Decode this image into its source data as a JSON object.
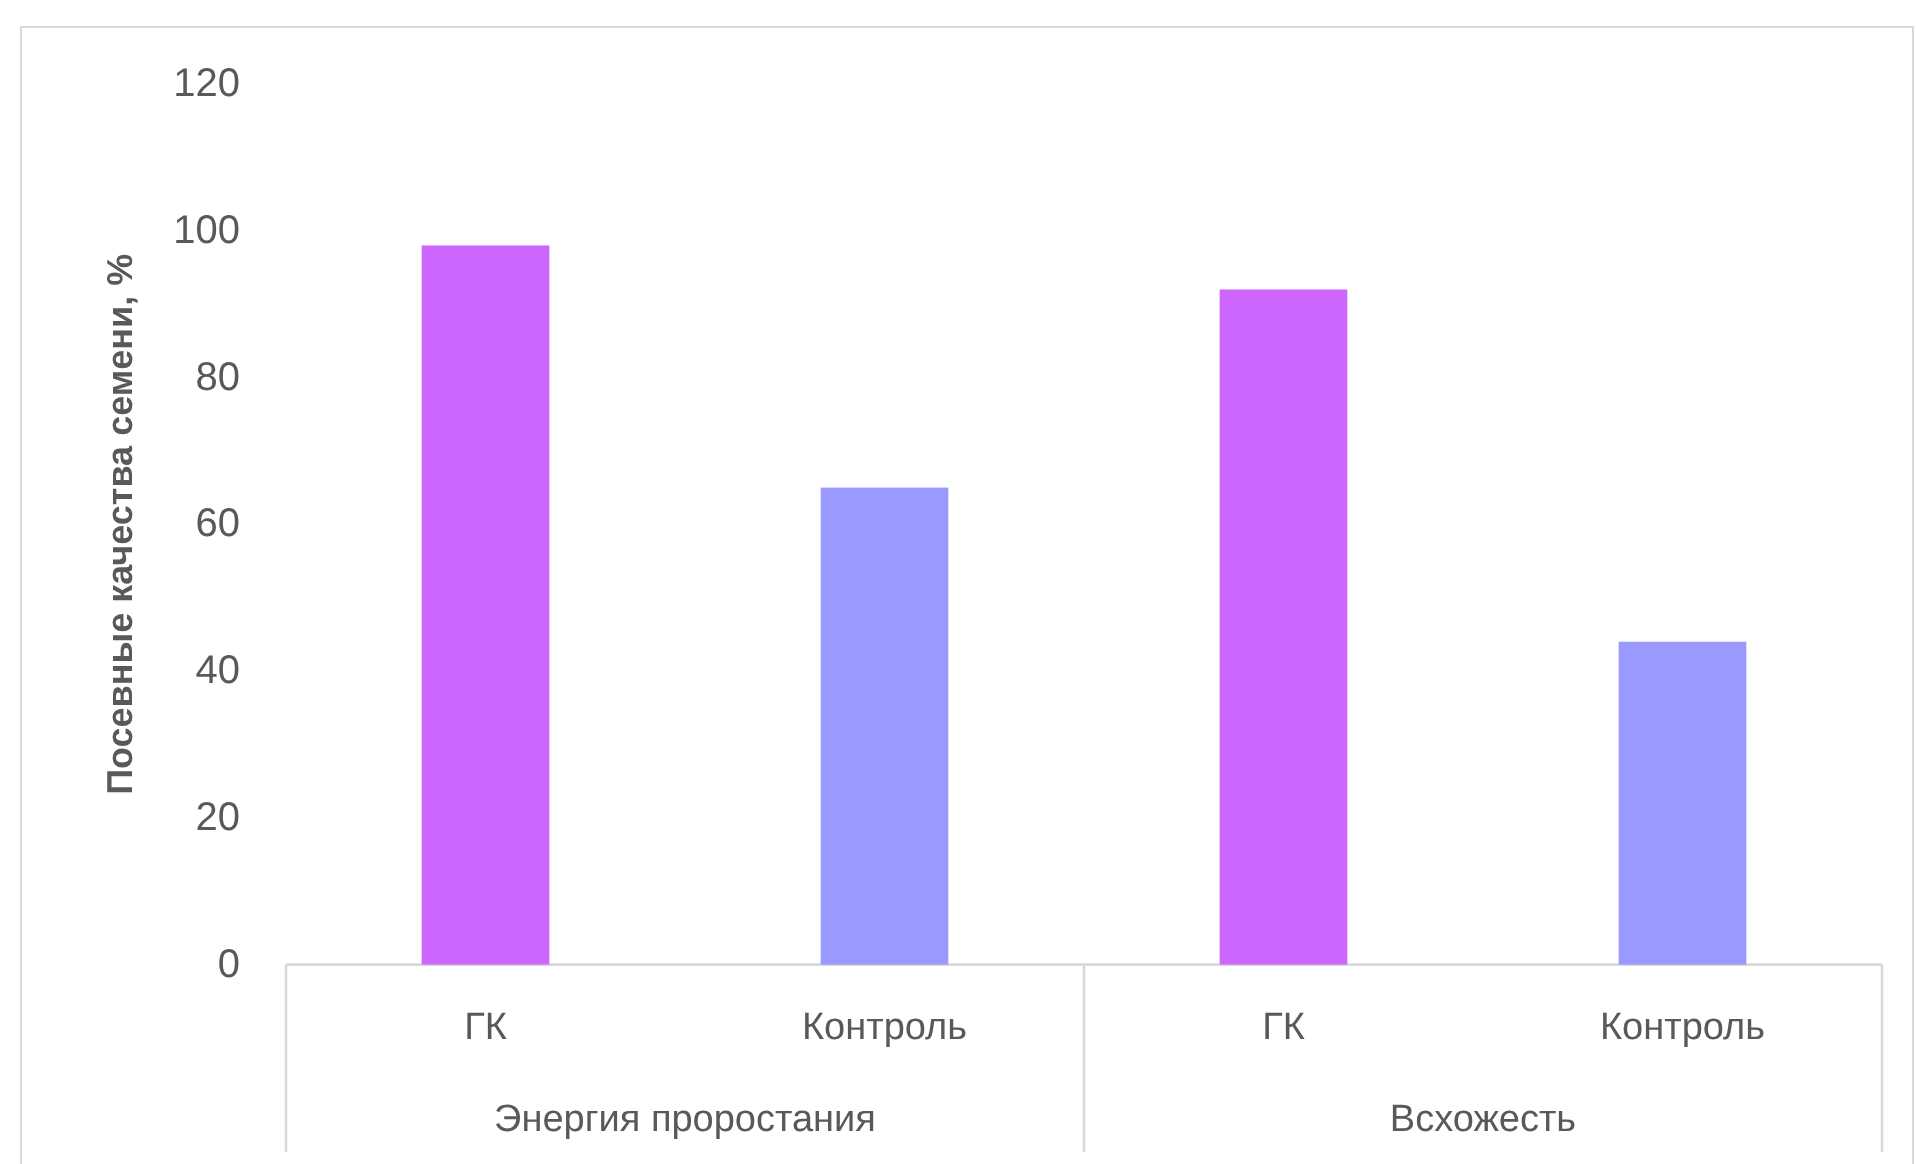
{
  "chart_data": {
    "type": "bar",
    "ylabel": "Посевные качества семени, %",
    "categories": [
      "Энергия проростания",
      "Всхожесть"
    ],
    "series": [
      {
        "name": "ГК",
        "color": "#cc66ff",
        "values": [
          98,
          92
        ]
      },
      {
        "name": "Контроль",
        "color": "#9999ff",
        "values": [
          65,
          44
        ]
      }
    ],
    "ylim": [
      0,
      120
    ],
    "yticks": [
      0,
      20,
      40,
      60,
      80,
      100,
      120
    ]
  }
}
